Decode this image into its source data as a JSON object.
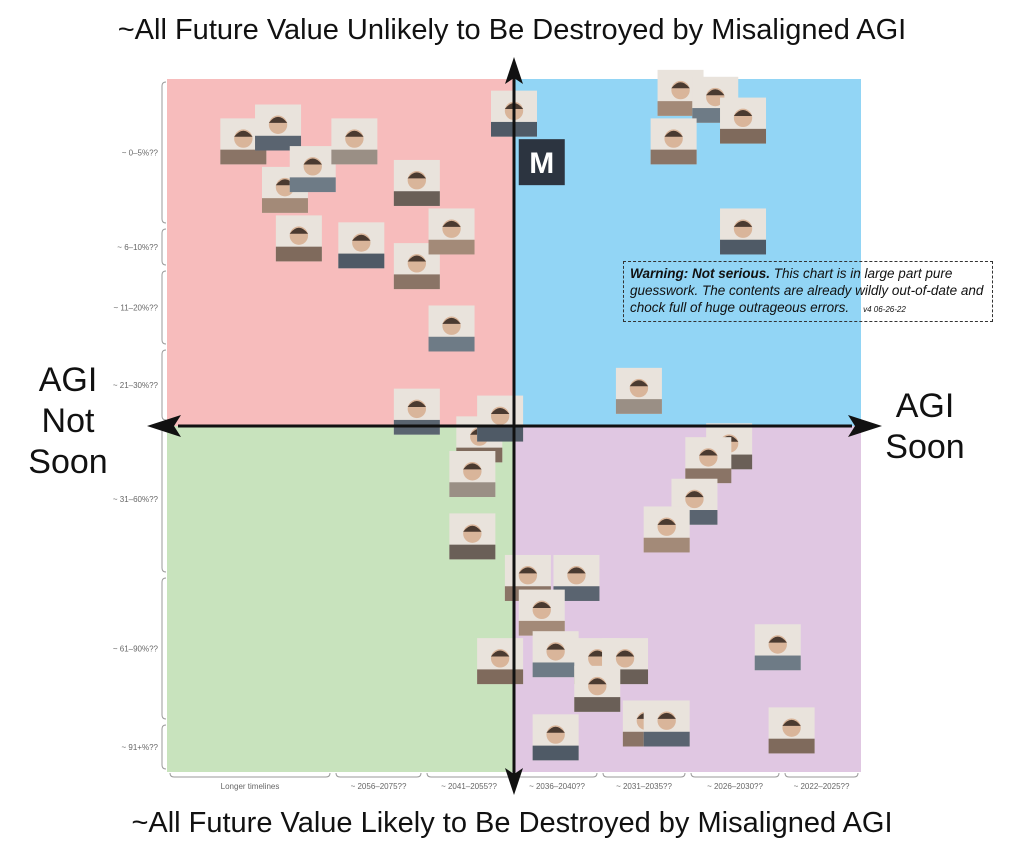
{
  "chart_data": {
    "type": "scatter",
    "title_top": "~All Future Value Unlikely to Be Destroyed by Misaligned AGI",
    "title_bottom": "~All Future Value Likely to Be Destroyed by Misaligned AGI",
    "label_left": [
      "AGI",
      "Not",
      "Soon"
    ],
    "label_right": [
      "AGI",
      "Soon"
    ],
    "y_categories": [
      "~ 0–5%??",
      "~ 6–10%??",
      "~ 11–20%??",
      "~ 21–30%??",
      "~ 31–60%??",
      "~ 61–90%??",
      "~ 91+%??"
    ],
    "x_categories": [
      "Longer timelines",
      "~ 2056–2075??",
      "~ 2041–2055??",
      "~ 2036–2040??",
      "~ 2031–2035??",
      "~ 2026–2030??",
      "~ 2022–2025??"
    ],
    "quadrant_colors": {
      "top_left": "#f7bcbc",
      "top_right": "#92d5f5",
      "bottom_left": "#c8e3bd",
      "bottom_right": "#e0c7e2"
    },
    "warning": {
      "bold": "Warning: Not serious.",
      "text": " This chart is in large part pure guesswork. The contents are already wildly out-of-date and chock full of huge outrageous errors.",
      "version": "v4 06-26-22"
    },
    "points": [
      {
        "x": 0.11,
        "y": 0.09,
        "icon": "photo"
      },
      {
        "x": 0.16,
        "y": 0.07,
        "icon": "photo"
      },
      {
        "x": 0.17,
        "y": 0.16,
        "icon": "photo"
      },
      {
        "x": 0.21,
        "y": 0.13,
        "icon": "photo"
      },
      {
        "x": 0.19,
        "y": 0.23,
        "icon": "photo"
      },
      {
        "x": 0.28,
        "y": 0.24,
        "icon": "photo"
      },
      {
        "x": 0.27,
        "y": 0.09,
        "icon": "photo"
      },
      {
        "x": 0.36,
        "y": 0.15,
        "icon": "photo"
      },
      {
        "x": 0.36,
        "y": 0.27,
        "icon": "photo"
      },
      {
        "x": 0.36,
        "y": 0.48,
        "icon": "photo"
      },
      {
        "x": 0.41,
        "y": 0.22,
        "icon": "photo"
      },
      {
        "x": 0.41,
        "y": 0.36,
        "icon": "photo"
      },
      {
        "x": 0.45,
        "y": 0.52,
        "icon": "photo"
      },
      {
        "x": 0.48,
        "y": 0.49,
        "icon": "photo"
      },
      {
        "x": 0.44,
        "y": 0.57,
        "icon": "photo"
      },
      {
        "x": 0.44,
        "y": 0.66,
        "icon": "photo"
      },
      {
        "x": 0.52,
        "y": 0.72,
        "icon": "photo"
      },
      {
        "x": 0.59,
        "y": 0.72,
        "icon": "photo"
      },
      {
        "x": 0.54,
        "y": 0.77,
        "icon": "photo"
      },
      {
        "x": 0.56,
        "y": 0.83,
        "icon": "photo"
      },
      {
        "x": 0.48,
        "y": 0.84,
        "icon": "photo"
      },
      {
        "x": 0.56,
        "y": 0.95,
        "icon": "photo"
      },
      {
        "x": 0.62,
        "y": 0.84,
        "icon": "photo"
      },
      {
        "x": 0.66,
        "y": 0.84,
        "icon": "photo"
      },
      {
        "x": 0.69,
        "y": 0.93,
        "icon": "photo"
      },
      {
        "x": 0.72,
        "y": 0.93,
        "icon": "photo"
      },
      {
        "x": 0.74,
        "y": 0.02,
        "icon": "photo"
      },
      {
        "x": 0.79,
        "y": 0.03,
        "icon": "photo"
      },
      {
        "x": 0.83,
        "y": 0.06,
        "icon": "photo"
      },
      {
        "x": 0.83,
        "y": 0.22,
        "icon": "photo"
      },
      {
        "x": 0.68,
        "y": 0.45,
        "icon": "photo"
      },
      {
        "x": 0.81,
        "y": 0.53,
        "icon": "photo"
      },
      {
        "x": 0.78,
        "y": 0.55,
        "icon": "photo"
      },
      {
        "x": 0.76,
        "y": 0.61,
        "icon": "photo"
      },
      {
        "x": 0.72,
        "y": 0.65,
        "icon": "photo"
      },
      {
        "x": 0.88,
        "y": 0.82,
        "icon": "photo"
      },
      {
        "x": 0.9,
        "y": 0.94,
        "icon": "photo"
      },
      {
        "x": 0.5,
        "y": 0.05,
        "icon": "photo"
      },
      {
        "x": 0.54,
        "y": 0.12,
        "icon": "logo-m"
      },
      {
        "x": 0.62,
        "y": 0.88,
        "icon": "photo"
      },
      {
        "x": 0.73,
        "y": 0.09,
        "icon": "photo"
      }
    ]
  }
}
